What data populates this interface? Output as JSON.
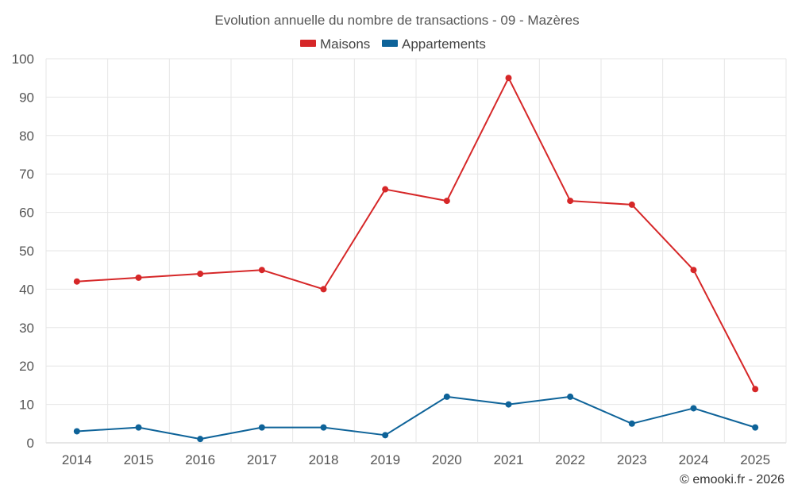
{
  "chart_data": {
    "type": "line",
    "title": "Evolution annuelle du nombre de transactions - 09 - Mazères",
    "categories": [
      "2014",
      "2015",
      "2016",
      "2017",
      "2018",
      "2019",
      "2020",
      "2021",
      "2022",
      "2023",
      "2024",
      "2025"
    ],
    "series": [
      {
        "name": "Maisons",
        "color": "#d62728",
        "values": [
          42,
          43,
          44,
          45,
          40,
          66,
          63,
          95,
          63,
          62,
          45,
          14
        ]
      },
      {
        "name": "Appartements",
        "color": "#0e6399",
        "values": [
          3,
          4,
          1,
          4,
          4,
          2,
          12,
          10,
          12,
          5,
          9,
          4
        ]
      }
    ],
    "ylim": [
      0,
      100
    ],
    "yticks": [
      "0",
      "10",
      "20",
      "30",
      "40",
      "50",
      "60",
      "70",
      "80",
      "90",
      "100"
    ],
    "xlabel": "",
    "ylabel": "",
    "grid": true,
    "legend_position": "top-center"
  },
  "credit": "© emooki.fr - 2026"
}
